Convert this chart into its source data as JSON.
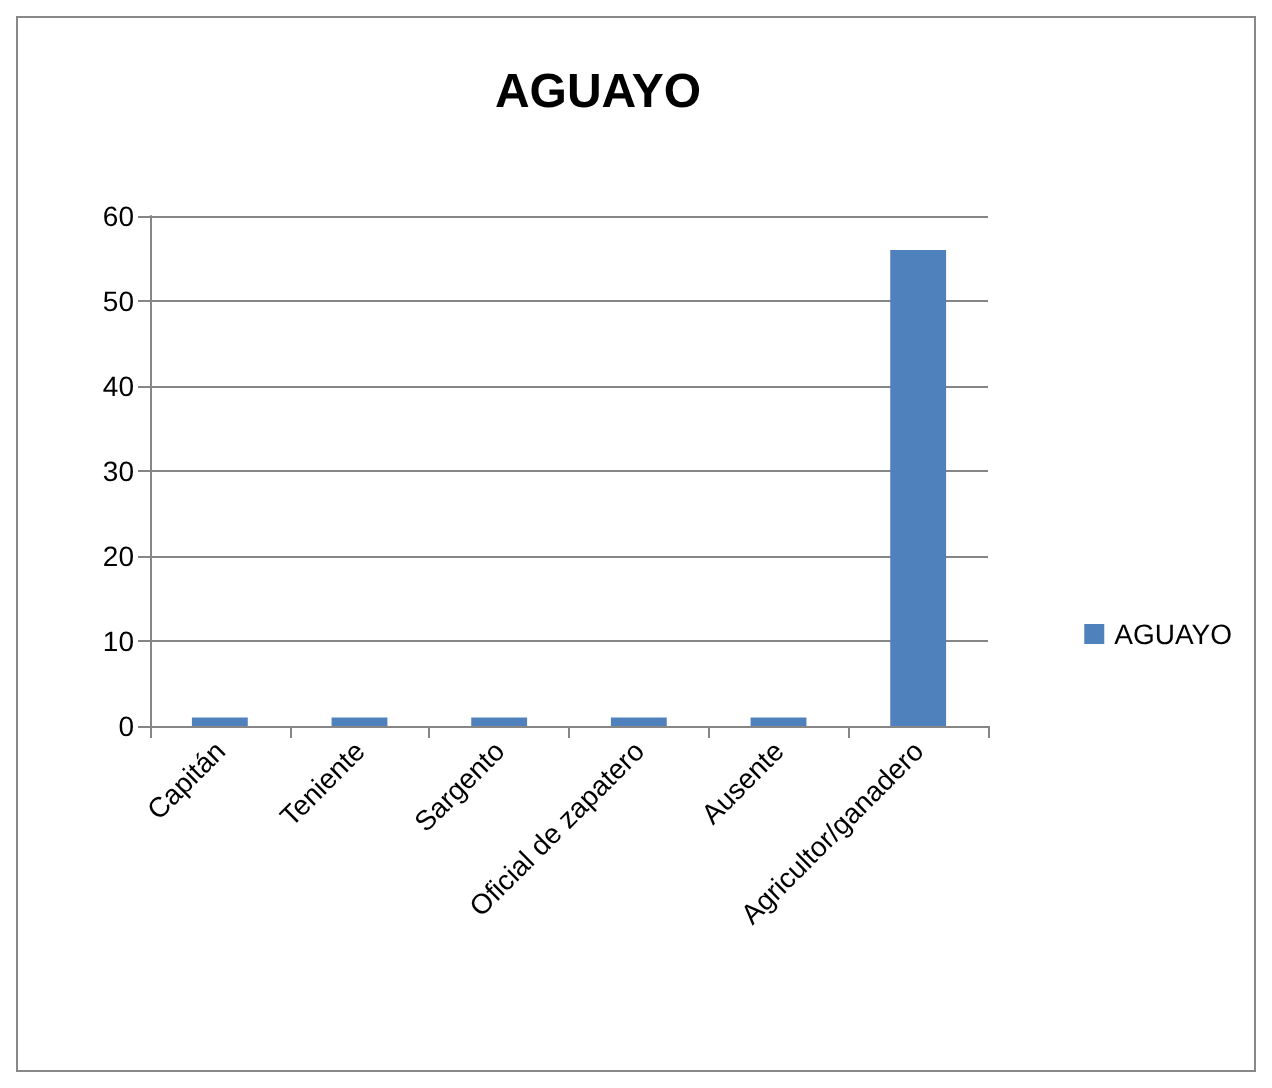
{
  "chart_data": {
    "type": "bar",
    "title": "AGUAYO",
    "categories": [
      "Capitán",
      "Teniente",
      "Sargento",
      "Oficial de zapatero",
      "Ausente",
      "Agricultor/ganadero"
    ],
    "series": [
      {
        "name": "AGUAYO",
        "color": "#4f81bd",
        "values": [
          1,
          1,
          1,
          1,
          1,
          56
        ]
      }
    ],
    "ylim": [
      0,
      60
    ],
    "yticks": [
      0,
      10,
      20,
      30,
      40,
      50,
      60
    ],
    "grid": "y",
    "legend": "right"
  }
}
